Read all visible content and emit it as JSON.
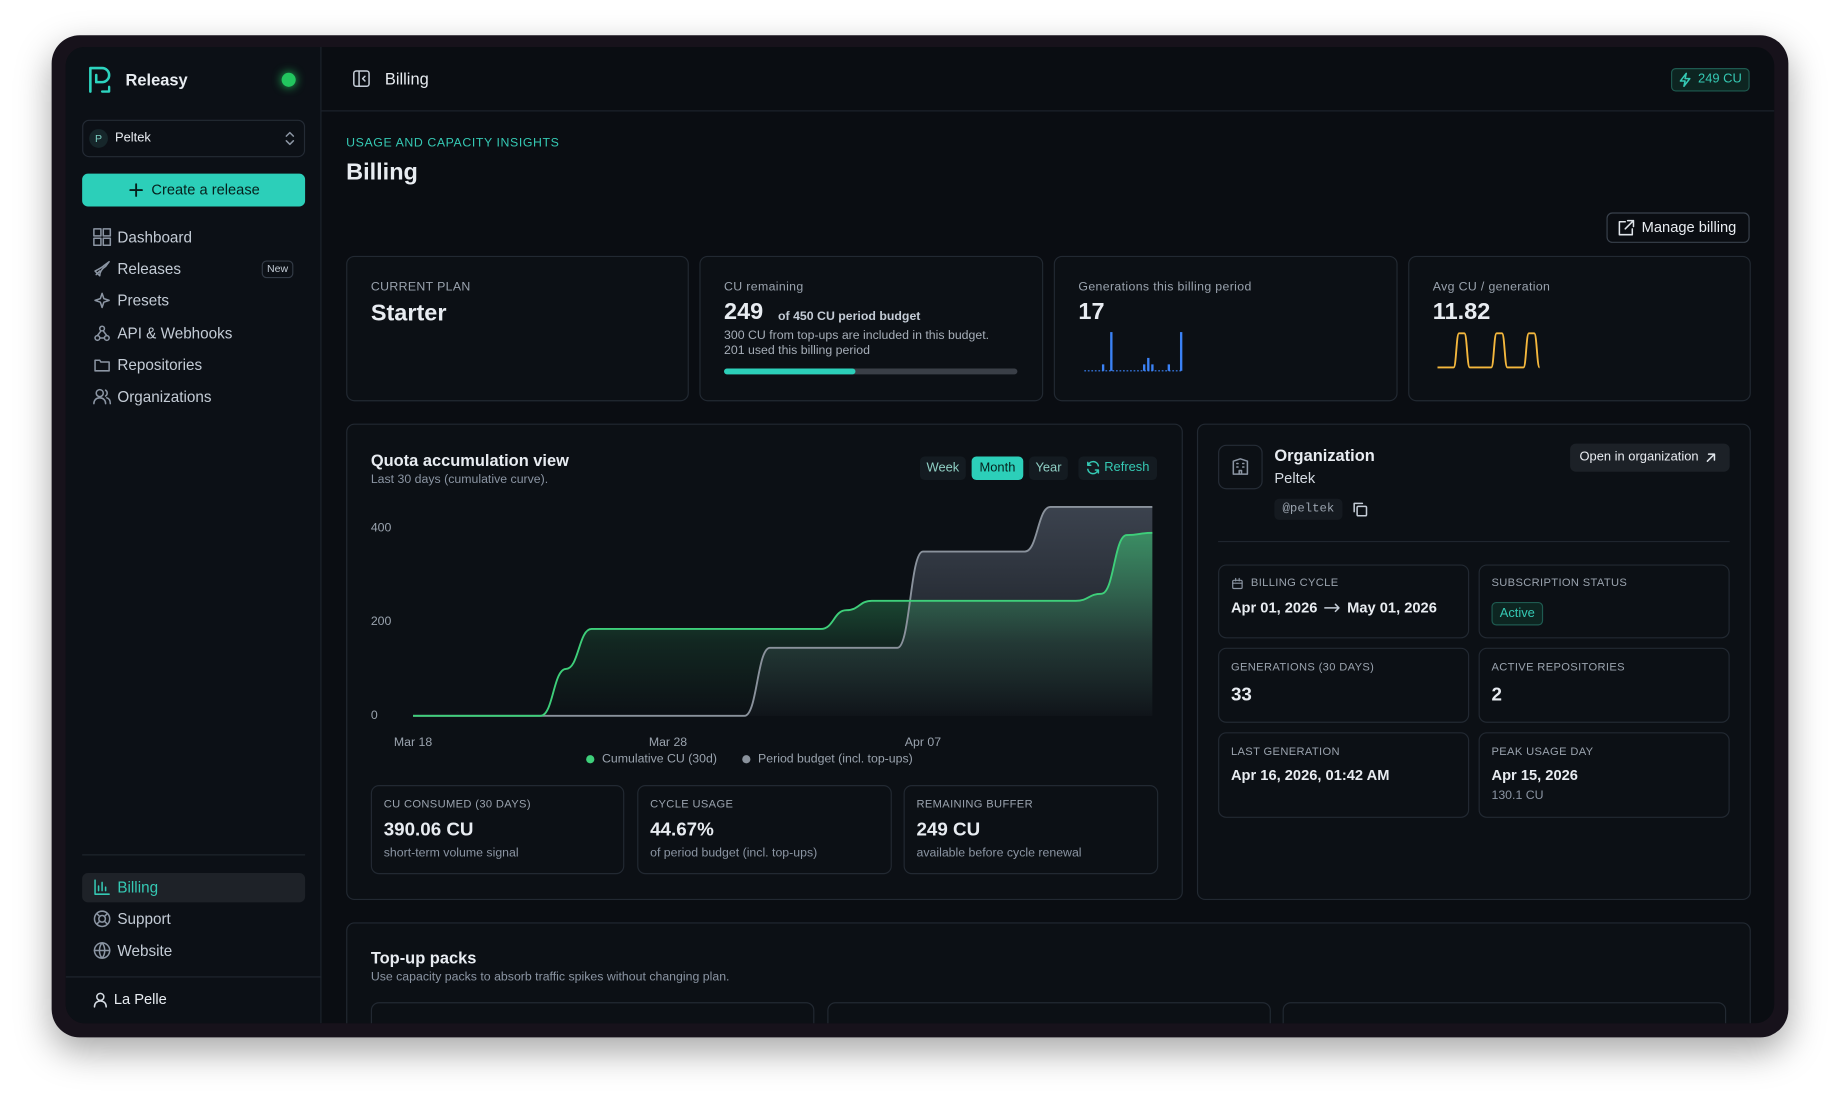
{
  "sidebar": {
    "brand": "Releasy",
    "org": {
      "initial": "P",
      "name": "Peltek"
    },
    "create_button": "Create a release",
    "nav": [
      {
        "label": "Dashboard"
      },
      {
        "label": "Releases",
        "badge": "New"
      },
      {
        "label": "Presets"
      },
      {
        "label": "API & Webhooks"
      },
      {
        "label": "Repositories"
      },
      {
        "label": "Organizations"
      }
    ],
    "footer_nav": [
      {
        "label": "Billing"
      },
      {
        "label": "Support"
      },
      {
        "label": "Website"
      }
    ],
    "user": "La Pelle"
  },
  "header": {
    "title": "Billing",
    "credits": "249 CU"
  },
  "page": {
    "eyebrow": "USAGE AND CAPACITY INSIGHTS",
    "title": "Billing",
    "manage_button": "Manage billing"
  },
  "stats": {
    "plan": {
      "label": "CURRENT PLAN",
      "value": "Starter"
    },
    "remaining": {
      "label": "CU remaining",
      "value": "249",
      "budget": "of 450 CU period budget",
      "note": "300 CU from top-ups are included in this budget.",
      "used": "201 used this billing period",
      "progress": 44.67
    },
    "generations": {
      "label": "Generations this billing period",
      "value": "17"
    },
    "avg": {
      "label": "Avg CU / generation",
      "value": "11.82"
    }
  },
  "chart_data": [
    {
      "type": "area",
      "categories": [
        "Mar 18",
        null,
        null,
        null,
        null,
        null,
        null,
        null,
        null,
        null,
        "Mar 28",
        null,
        null,
        null,
        null,
        null,
        null,
        null,
        null,
        null,
        "Apr 07",
        null,
        null,
        null,
        null,
        null,
        null,
        null,
        null,
        null
      ],
      "series": [
        {
          "name": "Cumulative CU (30d)",
          "color": "#3ecf7a",
          "values": [
            0,
            0,
            0,
            0,
            0,
            0,
            100,
            185,
            185,
            185,
            185,
            185,
            185,
            185,
            185,
            185,
            185,
            225,
            245,
            245,
            245,
            245,
            245,
            245,
            245,
            245,
            245,
            260,
            385,
            390
          ]
        },
        {
          "name": "Period budget (incl. top-ups)",
          "color": "#8a929c",
          "values": [
            0,
            0,
            0,
            0,
            0,
            0,
            0,
            0,
            0,
            0,
            0,
            0,
            0,
            0,
            145,
            145,
            145,
            145,
            145,
            145,
            350,
            350,
            350,
            350,
            350,
            445,
            445,
            445,
            445,
            445
          ]
        }
      ],
      "ylim": [
        0,
        450
      ],
      "yticks": [
        0,
        200,
        400
      ]
    },
    {
      "type": "bar",
      "color": "#3b82f6",
      "values": [
        0,
        0,
        0,
        0,
        1,
        0,
        6,
        0,
        0,
        0,
        0,
        0,
        0,
        0,
        1,
        2,
        1,
        0,
        0,
        0,
        1,
        0,
        0,
        6
      ]
    },
    {
      "type": "line",
      "color": "#f5b83d",
      "values": [
        2,
        2,
        2,
        2,
        22,
        22,
        2,
        2,
        2,
        2,
        2,
        22,
        22,
        2,
        2,
        2,
        2,
        22,
        22,
        2
      ]
    }
  ],
  "quota": {
    "title": "Quota accumulation view",
    "subtitle": "Last 30 days (cumulative curve).",
    "ranges": [
      "Week",
      "Month",
      "Year"
    ],
    "refresh": "Refresh",
    "cards": [
      {
        "label": "CU CONSUMED (30 DAYS)",
        "value": "390.06 CU",
        "note": "short-term volume signal"
      },
      {
        "label": "CYCLE USAGE",
        "value": "44.67%",
        "note": "of period budget (incl. top-ups)"
      },
      {
        "label": "REMAINING BUFFER",
        "value": "249 CU",
        "note": "available before cycle renewal"
      }
    ]
  },
  "organization": {
    "title": "Organization",
    "name": "Peltek",
    "handle": "@peltek",
    "open_button": "Open in organization",
    "billing_cycle": {
      "label": "BILLING CYCLE",
      "start": "Apr 01, 2026",
      "end": "May 01, 2026"
    },
    "subscription": {
      "label": "SUBSCRIPTION STATUS",
      "value": "Active"
    },
    "generations": {
      "label": "GENERATIONS (30 DAYS)",
      "value": "33"
    },
    "repositories": {
      "label": "ACTIVE REPOSITORIES",
      "value": "2"
    },
    "last_generation": {
      "label": "LAST GENERATION",
      "value": "Apr 16, 2026, 01:42 AM"
    },
    "peak_day": {
      "label": "PEAK USAGE DAY",
      "value": "Apr 15, 2026",
      "note": "130.1 CU"
    }
  },
  "topups": {
    "title": "Top-up packs",
    "subtitle": "Use capacity packs to absorb traffic spikes without changing plan."
  }
}
